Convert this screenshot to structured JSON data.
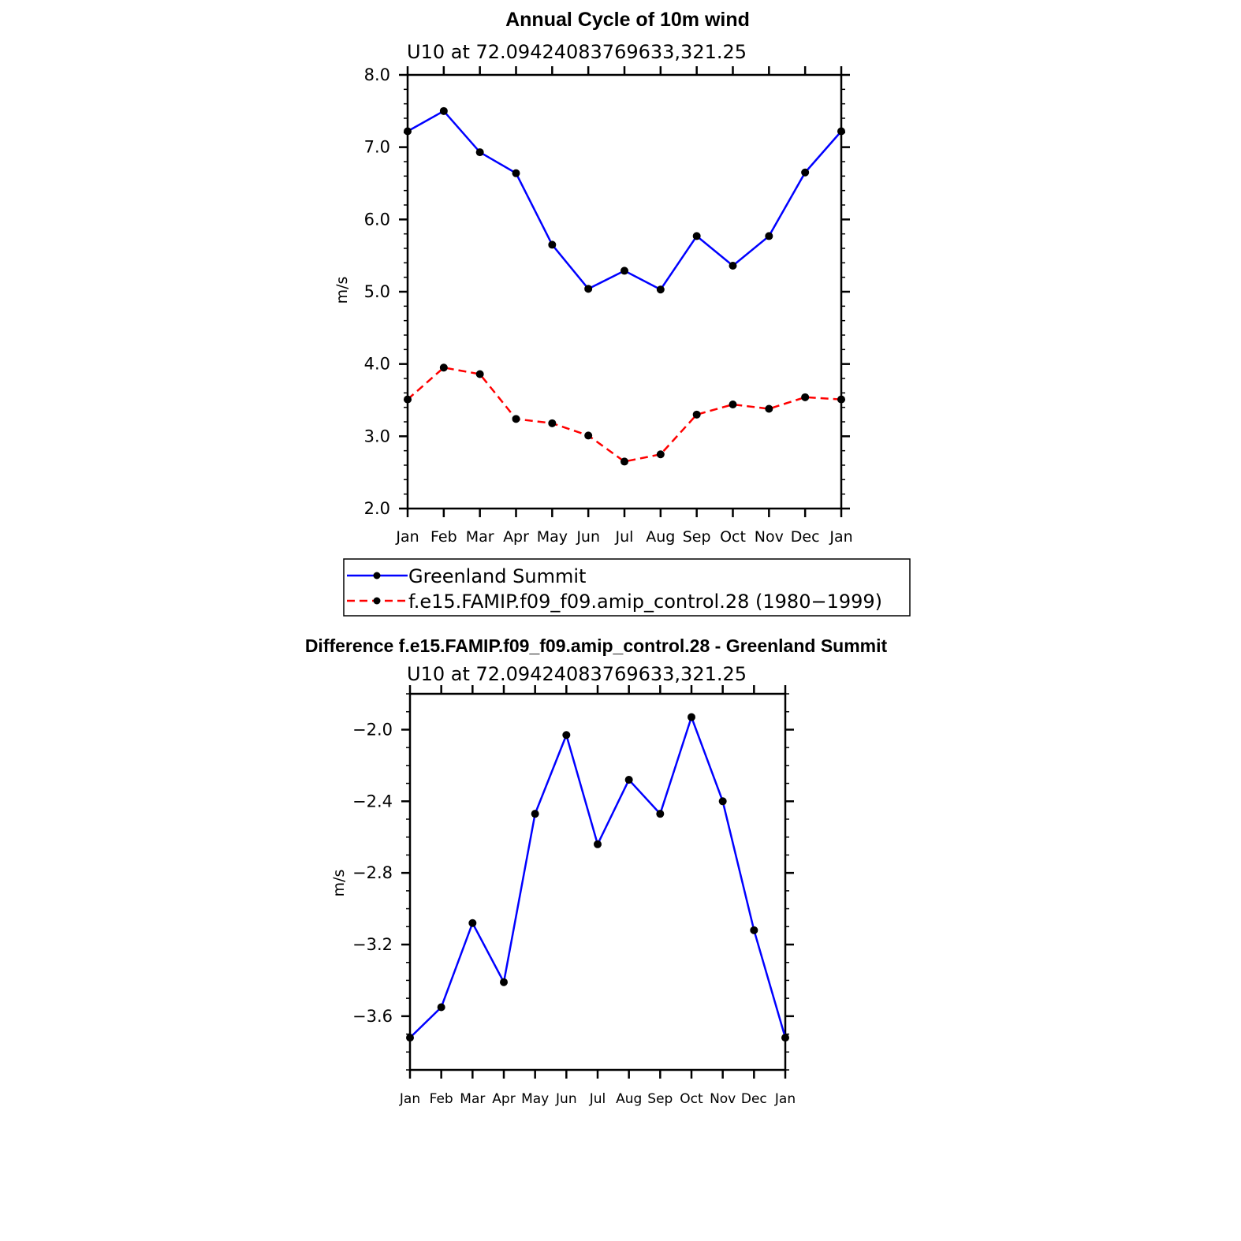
{
  "chart_data": [
    {
      "type": "line",
      "title": "Annual Cycle of 10m wind",
      "subtitle": "U10  at  72.09424083769633,321.25",
      "ylabel": "m/s",
      "xlabel": "",
      "ylim": [
        2.0,
        8.0
      ],
      "yticks": [
        "2.0",
        "3.0",
        "4.0",
        "5.0",
        "6.0",
        "7.0",
        "8.0"
      ],
      "categories": [
        "Jan",
        "Feb",
        "Mar",
        "Apr",
        "May",
        "Jun",
        "Jul",
        "Aug",
        "Sep",
        "Oct",
        "Nov",
        "Dec",
        "Jan"
      ],
      "series": [
        {
          "name": "Greenland Summit",
          "color": "#0000ff",
          "style": "solid",
          "values": [
            7.22,
            7.5,
            6.93,
            6.64,
            5.65,
            5.04,
            5.29,
            5.03,
            5.77,
            5.36,
            5.77,
            6.65,
            7.22
          ]
        },
        {
          "name": "f.e15.FAMIP.f09_f09.amip_control.28 (1980−1999)",
          "color": "#ff0000",
          "style": "dashed",
          "values": [
            3.51,
            3.95,
            3.86,
            3.24,
            3.18,
            3.01,
            2.65,
            2.75,
            3.3,
            3.44,
            3.38,
            3.54,
            3.51
          ]
        }
      ],
      "legend": "below"
    },
    {
      "type": "line",
      "title": "Difference f.e15.FAMIP.f09_f09.amip_control.28 - Greenland Summit",
      "subtitle": "U10  at  72.09424083769633,321.25",
      "ylabel": "m/s",
      "xlabel": "",
      "ylim": [
        -3.9,
        -1.8
      ],
      "yticks": [
        "−3.6",
        "−3.2",
        "−2.8",
        "−2.4",
        "−2.0"
      ],
      "categories": [
        "Jan",
        "Feb",
        "Mar",
        "Apr",
        "May",
        "Jun",
        "Jul",
        "Aug",
        "Sep",
        "Oct",
        "Nov",
        "Dec",
        "Jan"
      ],
      "series": [
        {
          "color": "#0000ff",
          "style": "solid",
          "values": [
            -3.72,
            -3.55,
            -3.08,
            -3.41,
            -2.47,
            -2.03,
            -2.64,
            -2.28,
            -2.47,
            -1.93,
            -2.4,
            -3.12,
            -3.72
          ]
        }
      ]
    }
  ]
}
